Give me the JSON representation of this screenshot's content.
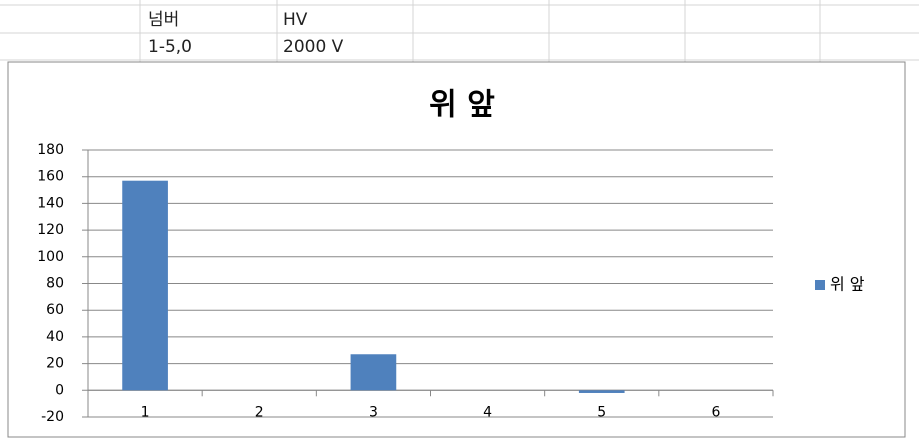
{
  "cells": [
    [
      "넘버",
      "HV"
    ],
    [
      "1-5,0",
      "2000 V"
    ]
  ],
  "chart_data": {
    "type": "bar",
    "title": "위 앞",
    "categories": [
      "1",
      "2",
      "3",
      "4",
      "5",
      "6"
    ],
    "series": [
      {
        "name": "위 앞",
        "color": "#4f81bd",
        "values": [
          157,
          0,
          27,
          0,
          -2,
          0
        ]
      }
    ],
    "ylim": [
      -20,
      180
    ],
    "yticks": [
      -20,
      0,
      20,
      40,
      60,
      80,
      100,
      120,
      140,
      160,
      180
    ],
    "grid": true,
    "legend": "right"
  }
}
